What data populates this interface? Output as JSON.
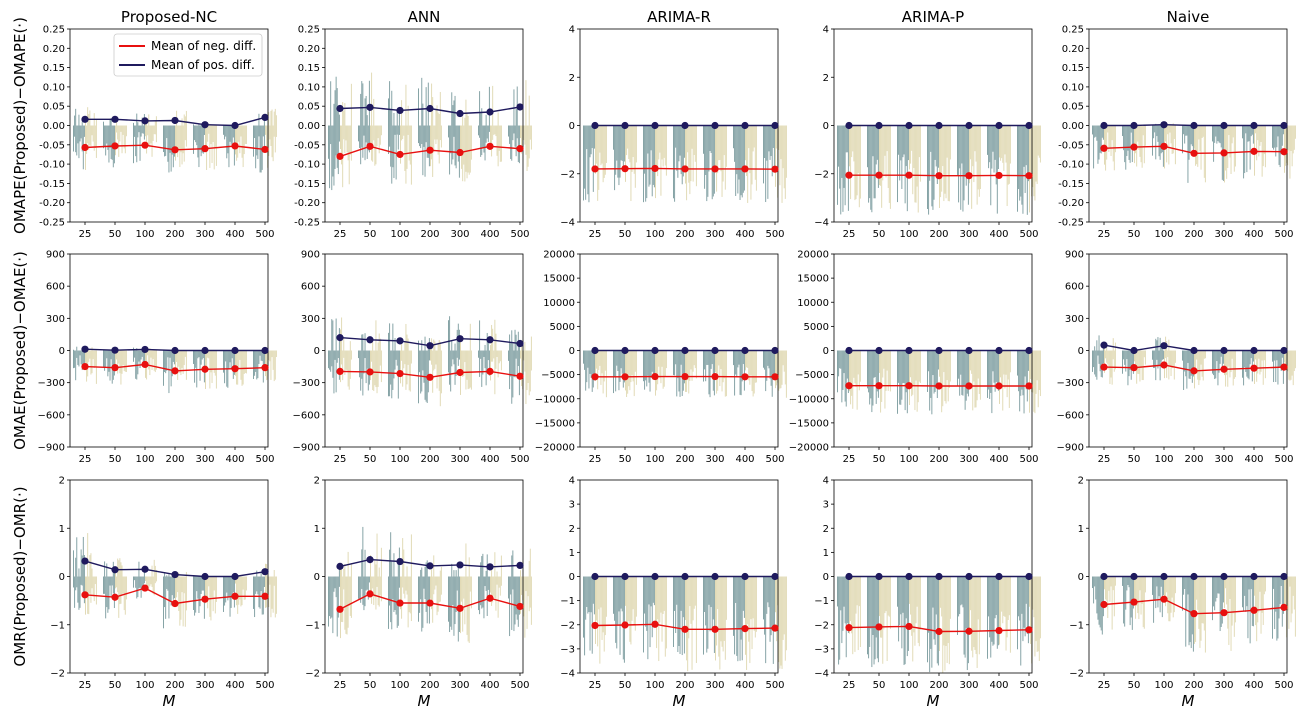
{
  "columns": [
    "Proposed-NC",
    "ANN",
    "ARIMA-R",
    "ARIMA-P",
    "Naive"
  ],
  "row_labels": [
    "OMAPE(Proposed)−OMAPE(·)",
    "OMAE(Proposed)−OMAE(·)",
    "OMR(Proposed)−OMR(·)"
  ],
  "xlabel": "M",
  "legend": {
    "neg": "Mean of neg. diff.",
    "pos": "Mean of pos. diff.",
    "placement": "top-right of first panel"
  },
  "colors": {
    "neg": "#e8100f",
    "pos": "#1f1a5e",
    "bar_teal": "#6f9295",
    "bar_beige": "#dcd3a8"
  },
  "chart_data": [
    {
      "row": 0,
      "type": "bar+line",
      "categories": [
        "25",
        "50",
        "100",
        "200",
        "300",
        "400",
        "500"
      ],
      "ylims": [
        [
          -0.25,
          0.25
        ],
        [
          -0.25,
          0.25
        ],
        [
          -4,
          4
        ],
        [
          -4,
          4
        ],
        [
          -0.25,
          0.25
        ]
      ],
      "yticks": [
        [
          "0.25",
          "0.20",
          "0.15",
          "0.10",
          "0.05",
          "0.00",
          "-0.05",
          "-0.10",
          "-0.15",
          "-0.20",
          "-0.25"
        ],
        [
          "0.25",
          "0.20",
          "0.15",
          "0.10",
          "0.05",
          "0.00",
          "-0.05",
          "-0.10",
          "-0.15",
          "-0.20",
          "-0.25"
        ],
        [
          "4",
          "2",
          "0",
          "−2",
          "−4"
        ],
        [
          "4",
          "2",
          "0",
          "−2",
          "−4"
        ],
        [
          "0.25",
          "0.20",
          "0.15",
          "0.10",
          "0.05",
          "0.00",
          "-0.05",
          "-0.10",
          "-0.15",
          "-0.20",
          "-0.25"
        ]
      ],
      "series": [
        {
          "panel": "Proposed-NC",
          "neg": [
            -0.057,
            -0.053,
            -0.051,
            -0.063,
            -0.06,
            -0.053,
            -0.062
          ],
          "pos": [
            0.016,
            0.016,
            0.012,
            0.013,
            0.002,
            0.0,
            0.021
          ]
        },
        {
          "panel": "ANN",
          "neg": [
            -0.08,
            -0.054,
            -0.075,
            -0.064,
            -0.07,
            -0.054,
            -0.06
          ],
          "pos": [
            0.044,
            0.047,
            0.039,
            0.044,
            0.031,
            0.035,
            0.048
          ]
        },
        {
          "panel": "ARIMA-R",
          "neg": [
            -1.8,
            -1.79,
            -1.78,
            -1.8,
            -1.8,
            -1.8,
            -1.81
          ],
          "pos": [
            0,
            0,
            0,
            0,
            0,
            0,
            0
          ]
        },
        {
          "panel": "ARIMA-P",
          "neg": [
            -2.06,
            -2.06,
            -2.06,
            -2.08,
            -2.08,
            -2.07,
            -2.08
          ],
          "pos": [
            0,
            0,
            0,
            0,
            0,
            0,
            0
          ]
        },
        {
          "panel": "Naive",
          "neg": [
            -0.059,
            -0.056,
            -0.054,
            -0.072,
            -0.071,
            -0.067,
            -0.068
          ],
          "pos": [
            0.0,
            0.0,
            0.002,
            0.0,
            0.0,
            0.0,
            0.0
          ]
        }
      ]
    },
    {
      "row": 1,
      "type": "bar+line",
      "categories": [
        "25",
        "50",
        "100",
        "200",
        "300",
        "400",
        "500"
      ],
      "ylims": [
        [
          -900,
          900
        ],
        [
          -900,
          900
        ],
        [
          -20000,
          20000
        ],
        [
          -20000,
          20000
        ],
        [
          -900,
          900
        ]
      ],
      "yticks": [
        [
          "900",
          "600",
          "300",
          "0",
          "−300",
          "−600",
          "−900"
        ],
        [
          "900",
          "600",
          "300",
          "0",
          "−300",
          "−600",
          "−900"
        ],
        [
          "20000",
          "15000",
          "10000",
          "5000",
          "0",
          "−5000",
          "−10000",
          "−15000",
          "−20000"
        ],
        [
          "20000",
          "15000",
          "10000",
          "5000",
          "0",
          "−5000",
          "−10000",
          "−15000",
          "−20000"
        ],
        [
          "900",
          "600",
          "300",
          "0",
          "−300",
          "−600",
          "−900"
        ]
      ],
      "series": [
        {
          "panel": "Proposed-NC",
          "neg": [
            -150,
            -160,
            -130,
            -190,
            -175,
            -170,
            -160
          ],
          "pos": [
            12,
            3,
            10,
            0,
            0,
            0,
            0
          ]
        },
        {
          "panel": "ANN",
          "neg": [
            -195,
            -200,
            -215,
            -250,
            -205,
            -195,
            -240
          ],
          "pos": [
            120,
            100,
            90,
            45,
            110,
            100,
            65
          ]
        },
        {
          "panel": "ARIMA-R",
          "neg": [
            -5450,
            -5450,
            -5400,
            -5400,
            -5400,
            -5450,
            -5450
          ],
          "pos": [
            0,
            0,
            0,
            0,
            0,
            0,
            0
          ]
        },
        {
          "panel": "ARIMA-P",
          "neg": [
            -7300,
            -7300,
            -7300,
            -7350,
            -7350,
            -7350,
            -7350
          ],
          "pos": [
            0,
            0,
            0,
            0,
            0,
            0,
            0
          ]
        },
        {
          "panel": "Naive",
          "neg": [
            -155,
            -160,
            -135,
            -190,
            -175,
            -165,
            -155
          ],
          "pos": [
            50,
            0,
            45,
            0,
            0,
            0,
            0
          ]
        }
      ]
    },
    {
      "row": 2,
      "type": "bar+line",
      "categories": [
        "25",
        "50",
        "100",
        "200",
        "300",
        "400",
        "500"
      ],
      "ylims": [
        [
          -2,
          2
        ],
        [
          -2,
          2
        ],
        [
          -4,
          4
        ],
        [
          -4,
          4
        ],
        [
          -2,
          2
        ]
      ],
      "yticks": [
        [
          "2",
          "1",
          "0",
          "−1",
          "−2"
        ],
        [
          "2",
          "1",
          "0",
          "−1",
          "−2"
        ],
        [
          "4",
          "3",
          "2",
          "1",
          "0",
          "−1",
          "−2",
          "−3",
          "−4"
        ],
        [
          "4",
          "3",
          "2",
          "1",
          "0",
          "−1",
          "−2",
          "−3",
          "−4"
        ],
        [
          "2",
          "1",
          "0",
          "−1",
          "−2"
        ]
      ],
      "series": [
        {
          "panel": "Proposed-NC",
          "neg": [
            -0.38,
            -0.43,
            -0.24,
            -0.56,
            -0.47,
            -0.41,
            -0.41
          ],
          "pos": [
            0.32,
            0.14,
            0.15,
            0.04,
            0.0,
            0.0,
            0.1
          ]
        },
        {
          "panel": "ANN",
          "neg": [
            -0.68,
            -0.36,
            -0.55,
            -0.55,
            -0.66,
            -0.45,
            -0.62
          ],
          "pos": [
            0.21,
            0.35,
            0.31,
            0.22,
            0.24,
            0.2,
            0.23
          ]
        },
        {
          "panel": "ARIMA-R",
          "neg": [
            -2.03,
            -2.01,
            -1.98,
            -2.19,
            -2.19,
            -2.16,
            -2.14
          ],
          "pos": [
            0,
            0,
            0,
            0,
            0,
            0,
            0
          ]
        },
        {
          "panel": "ARIMA-P",
          "neg": [
            -2.12,
            -2.09,
            -2.07,
            -2.28,
            -2.27,
            -2.24,
            -2.21
          ],
          "pos": [
            0,
            0,
            0,
            0,
            0,
            0,
            0
          ]
        },
        {
          "panel": "Naive",
          "neg": [
            -0.58,
            -0.53,
            -0.47,
            -0.77,
            -0.75,
            -0.7,
            -0.64
          ],
          "pos": [
            0.0,
            0.0,
            0.0,
            0.0,
            0.0,
            0.0,
            0.0
          ]
        }
      ]
    }
  ]
}
